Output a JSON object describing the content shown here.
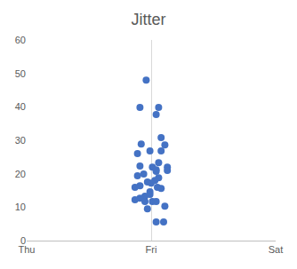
{
  "chart_data": {
    "type": "scatter",
    "title": "Jitter",
    "color": "#4472c4",
    "marker": "circle",
    "grid": "x",
    "x": [
      0.96,
      0.91,
      1.06,
      1.04,
      1.08,
      0.92,
      1.11,
      1.08,
      0.99,
      0.89,
      1.06,
      0.91,
      1.01,
      1.13,
      1.04,
      1.13,
      1.04,
      0.89,
      0.94,
      1.06,
      1.03,
      1.0,
      0.97,
      0.91,
      0.87,
      1.05,
      1.08,
      0.99,
      0.99,
      0.95,
      0.91,
      0.87,
      0.95,
      1.01,
      1.04,
      1.11,
      0.97,
      1.04,
      1.1
    ],
    "values": [
      48.0,
      39.8,
      39.8,
      37.7,
      30.8,
      28.9,
      28.6,
      26.8,
      26.8,
      26.0,
      23.3,
      22.3,
      22.0,
      22.0,
      21.2,
      21.0,
      20.7,
      19.4,
      19.9,
      18.8,
      18.0,
      17.2,
      17.5,
      16.4,
      15.9,
      15.9,
      15.6,
      14.6,
      13.8,
      13.3,
      12.7,
      12.2,
      11.7,
      11.7,
      11.7,
      10.3,
      9.5,
      5.6,
      5.6
    ],
    "xlim": [
      0,
      2
    ],
    "xticks": [
      {
        "value": 0,
        "label": "Thu"
      },
      {
        "value": 1,
        "label": "Fri"
      },
      {
        "value": 2,
        "label": "Sat"
      }
    ],
    "ylim": [
      0,
      60
    ],
    "yticks": [
      0,
      10,
      20,
      30,
      40,
      50,
      60
    ]
  }
}
